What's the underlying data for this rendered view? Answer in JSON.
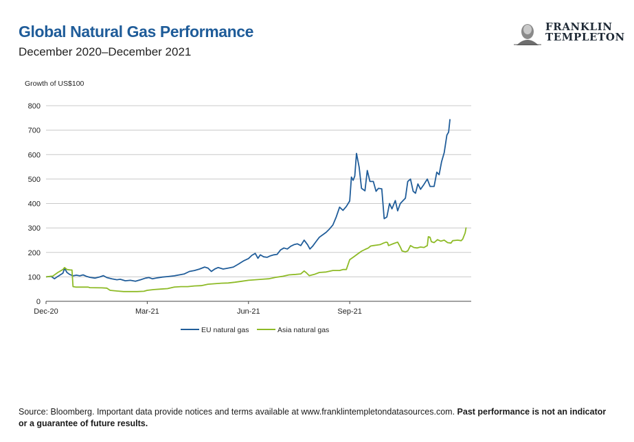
{
  "header": {
    "title": "Global Natural Gas Performance",
    "subtitle": "December 2020–December 2021"
  },
  "logo": {
    "line1": "FRANKLIN",
    "line2": "TEMPLETON"
  },
  "footer": {
    "source": "Source: Bloomberg. Important data provide notices and terms available at www.franklintempletondatasources.com.",
    "disclaimer": "Past performance is not an indicator or a guarantee of future results."
  },
  "colors": {
    "eu": "#1f5c99",
    "asia": "#8dba25",
    "title": "#1f5c99",
    "grid": "#c8c8c8"
  },
  "chart_data": {
    "type": "line",
    "title": "Global Natural Gas Performance",
    "ylabel": "Growth of US$100",
    "xlabel": "",
    "ylim": [
      0,
      800
    ],
    "yticks": [
      0,
      100,
      200,
      300,
      400,
      500,
      600,
      700,
      800
    ],
    "xlim": [
      0,
      12.6
    ],
    "xticks": [
      {
        "label": "Dec-20",
        "x": 0
      },
      {
        "label": "Mar-21",
        "x": 3
      },
      {
        "label": "Jun-21",
        "x": 6
      },
      {
        "label": "Sep-21",
        "x": 9
      }
    ],
    "legend_position": "bottom-center",
    "series": [
      {
        "name": "EU natural gas",
        "color": "#1f5c99",
        "points": [
          [
            0,
            100
          ],
          [
            0.15,
            102
          ],
          [
            0.25,
            92
          ],
          [
            0.35,
            102
          ],
          [
            0.5,
            115
          ],
          [
            0.55,
            135
          ],
          [
            0.62,
            118
          ],
          [
            0.7,
            110
          ],
          [
            0.8,
            104
          ],
          [
            0.9,
            107
          ],
          [
            1.0,
            104
          ],
          [
            1.1,
            108
          ],
          [
            1.2,
            102
          ],
          [
            1.3,
            98
          ],
          [
            1.45,
            95
          ],
          [
            1.6,
            100
          ],
          [
            1.7,
            105
          ],
          [
            1.8,
            97
          ],
          [
            1.95,
            92
          ],
          [
            2.1,
            88
          ],
          [
            2.2,
            90
          ],
          [
            2.35,
            84
          ],
          [
            2.5,
            86
          ],
          [
            2.65,
            82
          ],
          [
            2.8,
            88
          ],
          [
            2.95,
            95
          ],
          [
            3.05,
            97
          ],
          [
            3.15,
            92
          ],
          [
            3.3,
            96
          ],
          [
            3.45,
            99
          ],
          [
            3.6,
            101
          ],
          [
            3.8,
            104
          ],
          [
            3.95,
            108
          ],
          [
            4.1,
            112
          ],
          [
            4.25,
            122
          ],
          [
            4.4,
            126
          ],
          [
            4.55,
            132
          ],
          [
            4.7,
            140
          ],
          [
            4.8,
            136
          ],
          [
            4.9,
            122
          ],
          [
            5.0,
            132
          ],
          [
            5.1,
            138
          ],
          [
            5.25,
            132
          ],
          [
            5.4,
            136
          ],
          [
            5.55,
            140
          ],
          [
            5.7,
            152
          ],
          [
            5.85,
            165
          ],
          [
            6.0,
            175
          ],
          [
            6.1,
            188
          ],
          [
            6.2,
            196
          ],
          [
            6.28,
            176
          ],
          [
            6.35,
            190
          ],
          [
            6.45,
            182
          ],
          [
            6.55,
            180
          ],
          [
            6.65,
            186
          ],
          [
            6.75,
            190
          ],
          [
            6.85,
            192
          ],
          [
            6.95,
            210
          ],
          [
            7.05,
            218
          ],
          [
            7.15,
            214
          ],
          [
            7.25,
            225
          ],
          [
            7.35,
            232
          ],
          [
            7.45,
            235
          ],
          [
            7.55,
            228
          ],
          [
            7.65,
            250
          ],
          [
            7.75,
            232
          ],
          [
            7.82,
            214
          ],
          [
            7.9,
            225
          ],
          [
            8.0,
            244
          ],
          [
            8.1,
            262
          ],
          [
            8.2,
            272
          ],
          [
            8.3,
            282
          ],
          [
            8.4,
            296
          ],
          [
            8.5,
            312
          ],
          [
            8.6,
            345
          ],
          [
            8.7,
            385
          ],
          [
            8.8,
            372
          ],
          [
            8.9,
            388
          ],
          [
            9.0,
            410
          ],
          [
            9.05,
            508
          ],
          [
            9.1,
            495
          ],
          [
            9.15,
            512
          ],
          [
            9.2,
            605
          ],
          [
            9.28,
            548
          ],
          [
            9.35,
            462
          ],
          [
            9.45,
            452
          ],
          [
            9.52,
            535
          ],
          [
            9.6,
            490
          ],
          [
            9.7,
            490
          ],
          [
            9.78,
            450
          ],
          [
            9.85,
            462
          ],
          [
            9.95,
            460
          ],
          [
            10.02,
            338
          ],
          [
            10.1,
            345
          ],
          [
            10.18,
            400
          ],
          [
            10.25,
            378
          ],
          [
            10.35,
            412
          ],
          [
            10.42,
            370
          ],
          [
            10.5,
            400
          ],
          [
            10.58,
            412
          ],
          [
            10.65,
            422
          ],
          [
            10.72,
            490
          ],
          [
            10.8,
            500
          ],
          [
            10.88,
            450
          ],
          [
            10.95,
            442
          ],
          [
            11.02,
            480
          ],
          [
            11.1,
            458
          ],
          [
            11.2,
            478
          ],
          [
            11.3,
            500
          ],
          [
            11.38,
            470
          ],
          [
            11.5,
            470
          ],
          [
            11.58,
            528
          ],
          [
            11.65,
            518
          ],
          [
            11.72,
            570
          ],
          [
            11.8,
            608
          ],
          [
            11.88,
            680
          ],
          [
            11.93,
            692
          ],
          [
            11.97,
            745
          ]
        ]
      },
      {
        "name": "Asia natural gas",
        "color": "#8dba25",
        "points": [
          [
            0,
            100
          ],
          [
            0.2,
            103
          ],
          [
            0.35,
            118
          ],
          [
            0.5,
            130
          ],
          [
            0.55,
            138
          ],
          [
            0.62,
            130
          ],
          [
            0.72,
            128
          ],
          [
            0.77,
            128
          ],
          [
            0.8,
            60
          ],
          [
            0.88,
            58
          ],
          [
            0.95,
            58
          ],
          [
            1.25,
            58
          ],
          [
            1.3,
            56
          ],
          [
            1.65,
            55
          ],
          [
            1.8,
            54
          ],
          [
            1.9,
            45
          ],
          [
            2.1,
            42
          ],
          [
            2.3,
            40
          ],
          [
            2.5,
            40
          ],
          [
            2.7,
            40
          ],
          [
            2.9,
            41
          ],
          [
            3.0,
            45
          ],
          [
            3.2,
            48
          ],
          [
            3.4,
            50
          ],
          [
            3.6,
            52
          ],
          [
            3.8,
            58
          ],
          [
            4.0,
            60
          ],
          [
            4.2,
            60
          ],
          [
            4.4,
            63
          ],
          [
            4.6,
            64
          ],
          [
            4.8,
            70
          ],
          [
            5.0,
            72
          ],
          [
            5.2,
            74
          ],
          [
            5.4,
            75
          ],
          [
            5.6,
            78
          ],
          [
            5.8,
            82
          ],
          [
            6.0,
            86
          ],
          [
            6.2,
            88
          ],
          [
            6.4,
            90
          ],
          [
            6.6,
            92
          ],
          [
            6.8,
            98
          ],
          [
            7.0,
            102
          ],
          [
            7.2,
            108
          ],
          [
            7.4,
            110
          ],
          [
            7.55,
            112
          ],
          [
            7.65,
            124
          ],
          [
            7.72,
            116
          ],
          [
            7.8,
            105
          ],
          [
            7.95,
            110
          ],
          [
            8.1,
            118
          ],
          [
            8.3,
            120
          ],
          [
            8.5,
            126
          ],
          [
            8.7,
            126
          ],
          [
            8.8,
            130
          ],
          [
            8.9,
            130
          ],
          [
            9.0,
            170
          ],
          [
            9.1,
            180
          ],
          [
            9.15,
            185
          ],
          [
            9.25,
            195
          ],
          [
            9.35,
            205
          ],
          [
            9.45,
            212
          ],
          [
            9.55,
            218
          ],
          [
            9.62,
            226
          ],
          [
            9.7,
            228
          ],
          [
            9.8,
            230
          ],
          [
            9.9,
            232
          ],
          [
            10.0,
            238
          ],
          [
            10.08,
            242
          ],
          [
            10.12,
            240
          ],
          [
            10.15,
            228
          ],
          [
            10.3,
            236
          ],
          [
            10.42,
            242
          ],
          [
            10.5,
            222
          ],
          [
            10.55,
            206
          ],
          [
            10.65,
            202
          ],
          [
            10.72,
            206
          ],
          [
            10.8,
            228
          ],
          [
            10.9,
            220
          ],
          [
            11.0,
            218
          ],
          [
            11.1,
            222
          ],
          [
            11.2,
            220
          ],
          [
            11.3,
            228
          ],
          [
            11.33,
            264
          ],
          [
            11.38,
            262
          ],
          [
            11.42,
            244
          ],
          [
            11.5,
            240
          ],
          [
            11.6,
            252
          ],
          [
            11.7,
            246
          ],
          [
            11.8,
            250
          ],
          [
            11.9,
            240
          ],
          [
            12.0,
            238
          ],
          [
            12.05,
            248
          ],
          [
            12.2,
            250
          ],
          [
            12.3,
            248
          ],
          [
            12.35,
            255
          ],
          [
            12.42,
            280
          ],
          [
            12.45,
            302
          ]
        ]
      }
    ]
  }
}
